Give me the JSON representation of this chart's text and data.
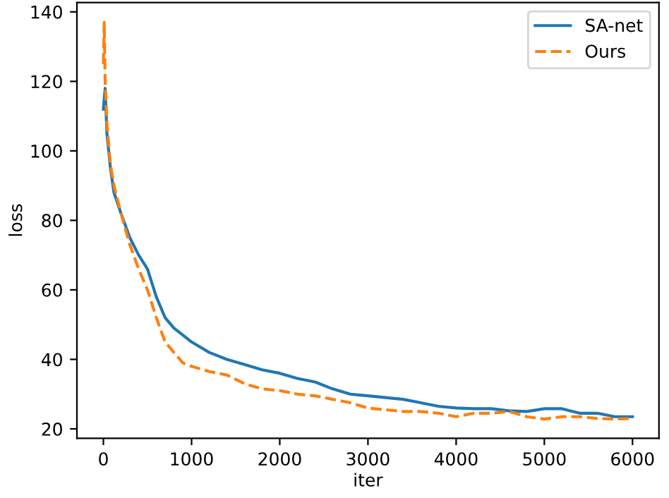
{
  "chart_data": {
    "type": "line",
    "xlabel": "iter",
    "ylabel": "loss",
    "xlim": [
      -300,
      6300
    ],
    "ylim": [
      17.3,
      142.7
    ],
    "xticks": [
      0,
      1000,
      2000,
      3000,
      4000,
      5000,
      6000
    ],
    "yticks": [
      20,
      40,
      60,
      80,
      100,
      120,
      140
    ],
    "legend": "top right",
    "grid": false,
    "series": [
      {
        "name": "SA-net",
        "color": "#1f77b4",
        "line_style": "solid",
        "x": [
          0,
          20,
          40,
          80,
          120,
          200,
          300,
          400,
          500,
          600,
          700,
          800,
          900,
          1000,
          1200,
          1400,
          1600,
          1800,
          2000,
          2200,
          2400,
          2600,
          2800,
          3000,
          3200,
          3400,
          3600,
          3800,
          4000,
          4200,
          4400,
          4600,
          4800,
          5000,
          5200,
          5400,
          5600,
          5800,
          6000
        ],
        "values": [
          112,
          118,
          105,
          95,
          88,
          82,
          75,
          70,
          66,
          58,
          52,
          49,
          47,
          45,
          42,
          40,
          38.5,
          37,
          36,
          34.5,
          33.5,
          31.5,
          30,
          29.5,
          29,
          28.5,
          27.5,
          26.5,
          26,
          25.8,
          25.8,
          25.2,
          25,
          25.8,
          25.8,
          24.5,
          24.5,
          23.5,
          23.5
        ]
      },
      {
        "name": "Ours",
        "color": "#ff7f0e",
        "line_style": "dashed",
        "x": [
          0,
          10,
          20,
          40,
          80,
          120,
          200,
          300,
          400,
          500,
          600,
          700,
          800,
          900,
          1000,
          1200,
          1400,
          1600,
          1800,
          2000,
          2200,
          2400,
          2600,
          2800,
          3000,
          3200,
          3400,
          3600,
          3800,
          4000,
          4200,
          4400,
          4600,
          4800,
          5000,
          5200,
          5400,
          5600,
          5800,
          6000
        ],
        "values": [
          125,
          137,
          120,
          108,
          96,
          90,
          82,
          73,
          66,
          60,
          52,
          45,
          42,
          39,
          38,
          36.5,
          35.5,
          33,
          31.5,
          31,
          30,
          29.5,
          28.5,
          27.5,
          26,
          25.5,
          25,
          25,
          24.5,
          23.5,
          24.5,
          24.5,
          25,
          23.5,
          22.8,
          23.5,
          23.5,
          23,
          22.8,
          23
        ]
      }
    ]
  }
}
